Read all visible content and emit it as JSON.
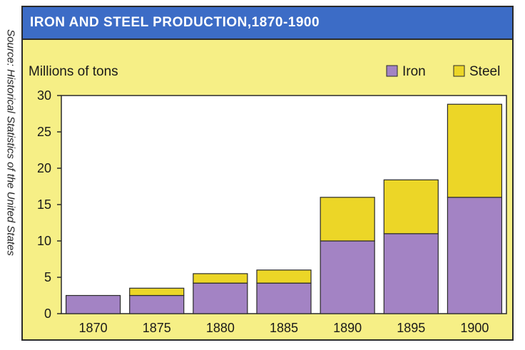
{
  "source_note": "Source: Historical Statistics of the United States",
  "colors": {
    "frame_bg": "#f6ef86",
    "title_bg": "#3c6cc6",
    "title_text": "#ffffff",
    "plot_bg": "#ffffff",
    "iron": "#a383c4",
    "steel": "#ecd627",
    "border": "#2a2a2a"
  },
  "chart_data": {
    "type": "bar",
    "stacked": true,
    "title": "IRON AND STEEL PRODUCTION,1870-1900",
    "ylabel": "Millions of tons",
    "xlabel": "",
    "categories": [
      "1870",
      "1875",
      "1880",
      "1885",
      "1890",
      "1895",
      "1900"
    ],
    "series": [
      {
        "name": "Iron",
        "values": [
          2.5,
          2.5,
          4.2,
          4.2,
          10,
          11,
          16
        ]
      },
      {
        "name": "Steel",
        "values": [
          0,
          1,
          1.3,
          1.8,
          6,
          7.4,
          12.8
        ]
      }
    ],
    "ylim": [
      0,
      30
    ],
    "yticks": [
      0,
      5,
      10,
      15,
      20,
      25,
      30
    ],
    "legend_position": "top-right",
    "grid": false
  }
}
